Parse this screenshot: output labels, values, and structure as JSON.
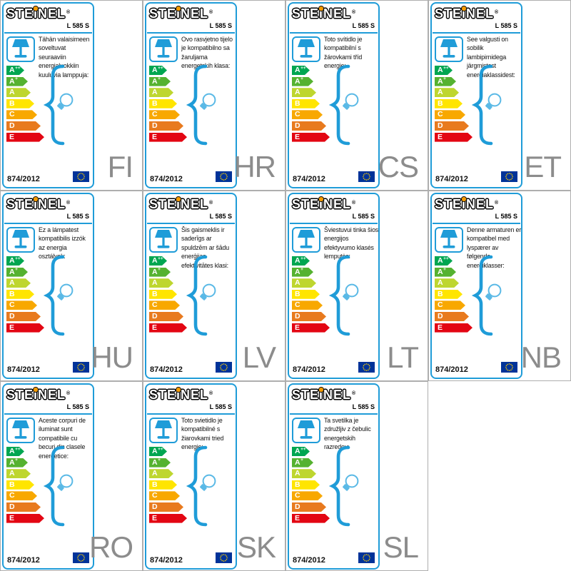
{
  "shared": {
    "brand": "STEiNEL",
    "registered_mark": "®",
    "model": "L 585 S",
    "regulation": "874/2012",
    "colors": {
      "accent_blue": "#1f9cd8",
      "bulb_blue": "#5ab9e6",
      "language_code_gray": "#8c8c8c",
      "cell_border_gray": "#aeaeae",
      "logo_dot_orange": "#f59b00",
      "eu_flag_blue": "#003399",
      "eu_flag_stars": "#ffcc00"
    },
    "classes": [
      {
        "label": "A",
        "sup": "++",
        "color": "#00a651",
        "width": 25
      },
      {
        "label": "A",
        "sup": "+",
        "color": "#55b230",
        "width": 30
      },
      {
        "label": "A",
        "sup": "",
        "color": "#bed62f",
        "width": 34
      },
      {
        "label": "B",
        "sup": "",
        "color": "#ffe500",
        "width": 39
      },
      {
        "label": "C",
        "sup": "",
        "color": "#f8a800",
        "width": 43
      },
      {
        "label": "D",
        "sup": "",
        "color": "#e87a1e",
        "width": 48
      },
      {
        "label": "E",
        "sup": "",
        "color": "#e30613",
        "width": 53
      }
    ]
  },
  "cards": [
    {
      "lang": "FI",
      "text": "Tähän valaisimeen soveltuvat seuraaviin energialuokkiin kuuluvia lamppuja:"
    },
    {
      "lang": "HR",
      "text": "Ovo rasvjetno tijelo je kompatibilno sa žaruljama energetskih klasa:"
    },
    {
      "lang": "CS",
      "text": "Toto svítidlo je kompatibilní s žárovkami tříd energie:"
    },
    {
      "lang": "ET",
      "text": "See valgusti on sobilik lambipirnidega järgmistest energiaklassidest:"
    },
    {
      "lang": "HU",
      "text": "Ez a lámpatest kompatibilis izzók az energia osztályok:"
    },
    {
      "lang": "LV",
      "text": "Šis gaismeklis ir saderīgs ar spuldzēm ar šādu enerģijas efektivitātes klasi:"
    },
    {
      "lang": "LT",
      "text": "Šviestuvui tinka šios energijos efektyvumo klasės lemputės:"
    },
    {
      "lang": "NB",
      "text": "Denne armaturen er kompatibel med lyspærer av følgende energiklasser:"
    },
    {
      "lang": "RO",
      "text": "Aceste corpuri de iluminat sunt compatibile cu becuri din clasele energetice:"
    },
    {
      "lang": "SK",
      "text": "Toto svietidlo je kompatibilné s žiarovkami tried energie:"
    },
    {
      "lang": "SL",
      "text": "Ta svetilka je združljiv z čebulic energetskih razredov:"
    }
  ]
}
